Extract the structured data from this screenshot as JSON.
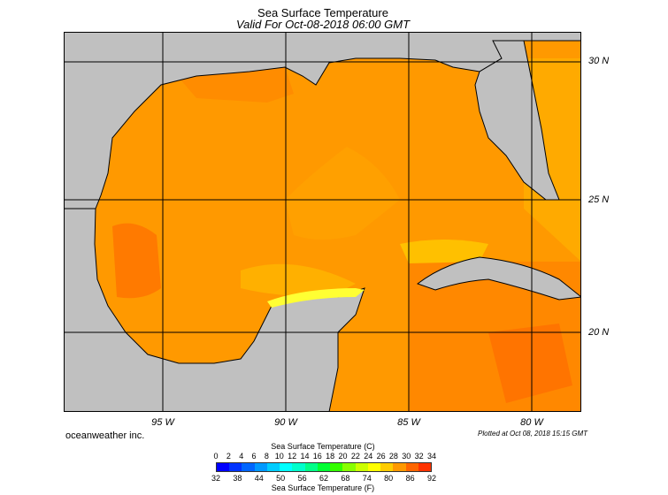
{
  "header": {
    "title": "Sea Surface Temperature",
    "subtitle": "Valid For Oct-08-2018 06:00 GMT"
  },
  "map": {
    "lat_labels": [
      "30 N",
      "25 N",
      "20 N"
    ],
    "lon_labels": [
      "95 W",
      "90 W",
      "85 W",
      "80 W"
    ],
    "colors": {
      "land": "#c0c0c0",
      "sst_main": "#ff9900",
      "sst_warm": "#ff7a00",
      "sst_cool": "#ffb400",
      "sst_coastal": "#ffdd00",
      "sst_yellow": "#ffff33",
      "grid": "#000000"
    }
  },
  "footer": {
    "company": "oceanweather inc.",
    "plotted": "Plotted at Oct 08, 2018 15:15 GMT"
  },
  "legend": {
    "celsius_title": "Sea Surface Temperature (C)",
    "fahrenheit_title": "Sea Surface Temperature (F)",
    "celsius_ticks": [
      "0",
      "2",
      "4",
      "6",
      "8",
      "10",
      "12",
      "14",
      "16",
      "18",
      "20",
      "22",
      "24",
      "26",
      "28",
      "30",
      "32",
      "34"
    ],
    "fahrenheit_ticks": [
      "32",
      "38",
      "44",
      "50",
      "56",
      "62",
      "68",
      "74",
      "80",
      "86",
      "92"
    ],
    "colors": [
      "#0000ff",
      "#0033ff",
      "#0066ff",
      "#0099ff",
      "#00ccff",
      "#00ffff",
      "#00ffcc",
      "#00ff88",
      "#00ff33",
      "#33ff00",
      "#88ff00",
      "#ccff00",
      "#ffff00",
      "#ffcc00",
      "#ff9900",
      "#ff6600",
      "#ff3300"
    ]
  }
}
